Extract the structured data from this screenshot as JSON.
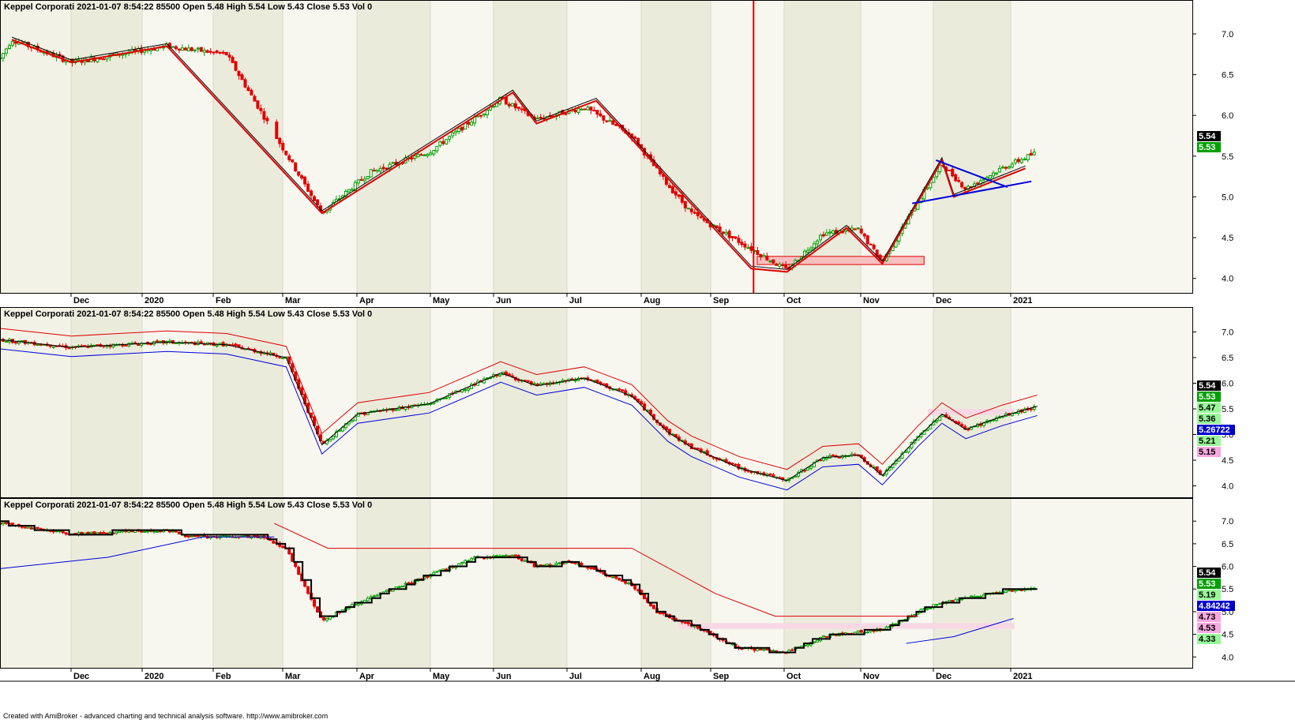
{
  "app": {
    "footer": "Created with AmiBroker - advanced charting and technical analysis software. http://www.amibroker.com"
  },
  "colors": {
    "up": "#00a000",
    "down": "#e00000",
    "frame": "#000000",
    "band_alt": "#ebebdc",
    "band_base": "#f7f7f0",
    "marker_line": "#e00000",
    "triangle_blue": "#0000dd",
    "zone_fill": "#f8c0c0",
    "zone_pink": "#f8d8e4"
  },
  "months": [
    "Dec",
    "2020",
    "Feb",
    "Mar",
    "Apr",
    "May",
    "Jun",
    "Jul",
    "Aug",
    "Sep",
    "Oct",
    "Nov",
    "Dec",
    "2021"
  ],
  "y_ticks": [
    "4.0",
    "4.5",
    "5.0",
    "5.5",
    "6.0",
    "6.5",
    "7.0"
  ],
  "chart_data": [
    {
      "type": "candlestick",
      "panel": "top",
      "header": {
        "name": "Keppel Corporati",
        "datetime": "2021-01-07 8:54:22",
        "volume_text": "85500",
        "open": "Open 5.48",
        "high": "High 5.54",
        "low": "Low 5.43",
        "close": "Close 5.53",
        "vol": "Vol 0"
      },
      "ylim": [
        3.9,
        7.3
      ],
      "price_path": [
        [
          0,
          6.7
        ],
        [
          0.01,
          6.93
        ],
        [
          0.06,
          6.65
        ],
        [
          0.14,
          6.85
        ],
        [
          0.19,
          6.75
        ],
        [
          0.27,
          4.8
        ],
        [
          0.31,
          5.3
        ],
        [
          0.36,
          5.55
        ],
        [
          0.42,
          6.2
        ],
        [
          0.45,
          5.95
        ],
        [
          0.49,
          6.1
        ],
        [
          0.53,
          5.75
        ],
        [
          0.56,
          5.15
        ],
        [
          0.58,
          4.8
        ],
        [
          0.62,
          4.45
        ],
        [
          0.66,
          4.1
        ],
        [
          0.69,
          4.55
        ],
        [
          0.72,
          4.6
        ],
        [
          0.74,
          4.2
        ],
        [
          0.77,
          4.95
        ],
        [
          0.79,
          5.4
        ],
        [
          0.81,
          5.1
        ],
        [
          0.84,
          5.35
        ],
        [
          0.87,
          5.55
        ]
      ],
      "zigzag": [
        [
          0.01,
          6.93
        ],
        [
          0.06,
          6.65
        ],
        [
          0.14,
          6.85
        ],
        [
          0.27,
          4.8
        ],
        [
          0.43,
          6.28
        ],
        [
          0.45,
          5.9
        ],
        [
          0.5,
          6.18
        ],
        [
          0.63,
          4.12
        ],
        [
          0.66,
          4.08
        ],
        [
          0.71,
          4.62
        ],
        [
          0.74,
          4.18
        ],
        [
          0.79,
          5.45
        ],
        [
          0.8,
          5.0
        ],
        [
          0.86,
          5.35
        ]
      ],
      "triangle": {
        "upper": [
          [
            0.785,
            5.45
          ],
          [
            0.845,
            5.12
          ]
        ],
        "lower": [
          [
            0.765,
            4.92
          ],
          [
            0.865,
            5.19
          ]
        ]
      },
      "red_zone": {
        "x0": 0.635,
        "x1": 0.775,
        "low": 4.17,
        "high": 4.27
      },
      "vertical_marker_x": 0.632,
      "labels": [
        {
          "text": "5.54",
          "style": "black"
        },
        {
          "text": "5.53",
          "style": "green"
        }
      ]
    },
    {
      "type": "candlestick",
      "panel": "middle",
      "header": {
        "name": "Keppel Corporati",
        "datetime": "2021-01-07 8:54:22",
        "volume_text": "85500",
        "open": "Open 5.48",
        "high": "High 5.54",
        "low": "Low 5.43",
        "close": "Close 5.53",
        "vol": "Vol 0"
      },
      "ylim": [
        3.9,
        7.3
      ],
      "price_path": [
        [
          0,
          6.85
        ],
        [
          0.06,
          6.7
        ],
        [
          0.14,
          6.8
        ],
        [
          0.19,
          6.75
        ],
        [
          0.24,
          6.5
        ],
        [
          0.27,
          4.8
        ],
        [
          0.3,
          5.4
        ],
        [
          0.36,
          5.6
        ],
        [
          0.42,
          6.2
        ],
        [
          0.45,
          5.95
        ],
        [
          0.49,
          6.1
        ],
        [
          0.53,
          5.75
        ],
        [
          0.56,
          5.05
        ],
        [
          0.58,
          4.75
        ],
        [
          0.62,
          4.35
        ],
        [
          0.66,
          4.1
        ],
        [
          0.69,
          4.55
        ],
        [
          0.72,
          4.6
        ],
        [
          0.74,
          4.2
        ],
        [
          0.77,
          4.95
        ],
        [
          0.79,
          5.4
        ],
        [
          0.81,
          5.1
        ],
        [
          0.84,
          5.35
        ],
        [
          0.87,
          5.55
        ]
      ],
      "labels": [
        {
          "text": "5.54",
          "style": "black"
        },
        {
          "text": "5.53",
          "style": "green"
        },
        {
          "text": "5.47",
          "style": "lightgreen"
        },
        {
          "text": "5.36",
          "style": "lightgreen"
        },
        {
          "text": "5.26722",
          "style": "blue"
        },
        {
          "text": "5.21",
          "style": "lightgreen"
        },
        {
          "text": "5.15",
          "style": "pink"
        }
      ]
    },
    {
      "type": "candlestick",
      "panel": "bottom",
      "header": {
        "name": "Keppel Corporati",
        "datetime": "2021-01-07 8:54:22",
        "volume_text": "85500",
        "open": "Open 5.48",
        "high": "High 5.54",
        "low": "Low 5.43",
        "close": "Close 5.53",
        "vol": "Vol 0"
      },
      "ylim": [
        3.9,
        7.3
      ],
      "price_path": [
        [
          0,
          6.95
        ],
        [
          0.06,
          6.72
        ],
        [
          0.14,
          6.8
        ],
        [
          0.16,
          6.65
        ],
        [
          0.22,
          6.65
        ],
        [
          0.24,
          6.4
        ],
        [
          0.27,
          4.8
        ],
        [
          0.3,
          5.2
        ],
        [
          0.34,
          5.6
        ],
        [
          0.4,
          6.2
        ],
        [
          0.43,
          6.25
        ],
        [
          0.45,
          6.0
        ],
        [
          0.48,
          6.1
        ],
        [
          0.53,
          5.6
        ],
        [
          0.55,
          5.0
        ],
        [
          0.58,
          4.7
        ],
        [
          0.62,
          4.2
        ],
        [
          0.66,
          4.1
        ],
        [
          0.69,
          4.45
        ],
        [
          0.72,
          4.55
        ],
        [
          0.74,
          4.6
        ],
        [
          0.77,
          5.0
        ],
        [
          0.79,
          5.2
        ],
        [
          0.84,
          5.45
        ],
        [
          0.87,
          5.53
        ]
      ],
      "labels": [
        {
          "text": "5.54",
          "style": "black"
        },
        {
          "text": "5.53",
          "style": "green"
        },
        {
          "text": "5.19",
          "style": "lightgreen"
        },
        {
          "text": "4.84242",
          "style": "blue"
        },
        {
          "text": "4.73",
          "style": "pink"
        },
        {
          "text": "4.53",
          "style": "pink"
        },
        {
          "text": "4.33",
          "style": "lightgreen"
        }
      ]
    }
  ]
}
